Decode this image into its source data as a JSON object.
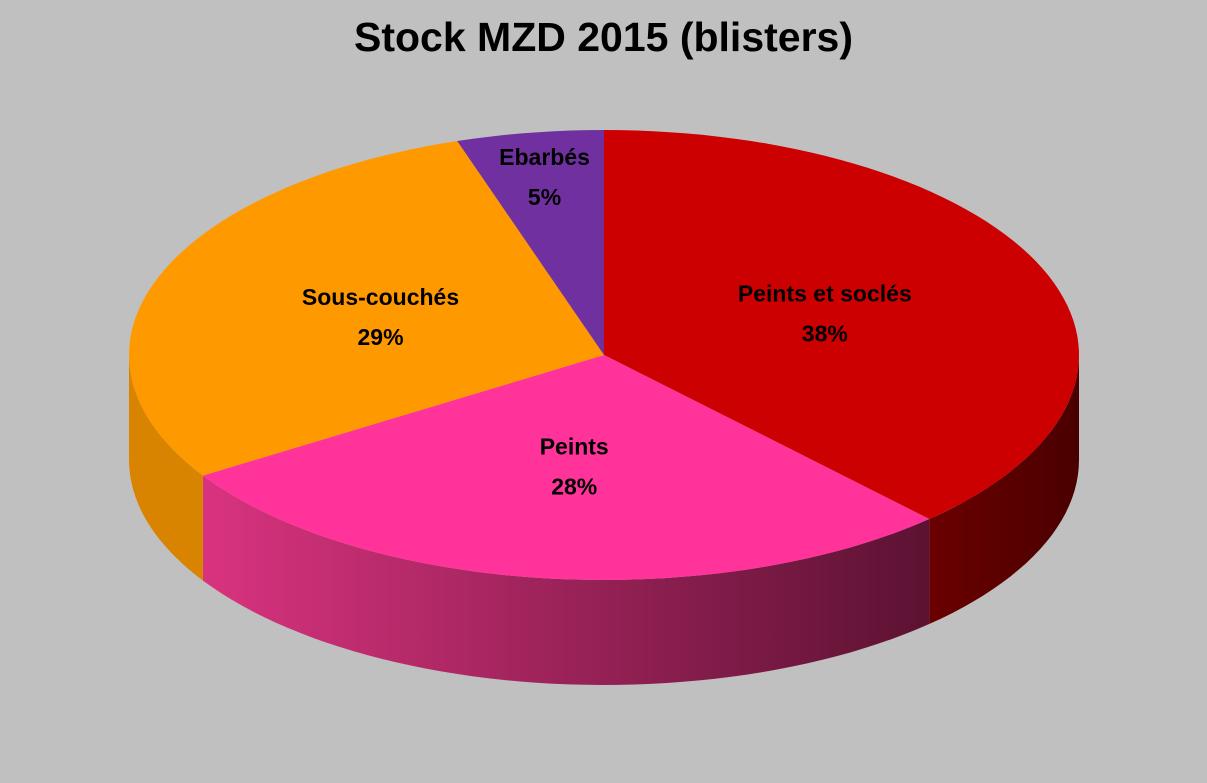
{
  "chart_data": {
    "type": "pie",
    "style": "3d",
    "title": "Stock MZD 2015 (blisters)",
    "slices": [
      {
        "label": "Peints et soclés",
        "value": 38,
        "display": "38%",
        "color": "#cc0000",
        "side_color": "#5a0000"
      },
      {
        "label": "Peints",
        "value": 28,
        "display": "28%",
        "color": "#ff3399",
        "side_color": "#a01e5c"
      },
      {
        "label": "Sous-couchés",
        "value": 29,
        "display": "29%",
        "color": "#ff9900",
        "side_color": "#d98400"
      },
      {
        "label": "Ebarbés",
        "value": 5,
        "display": "5%",
        "color": "#7030a0",
        "side_color": "#4a1f6b"
      }
    ],
    "background": "#c0c0c0",
    "legend": "none"
  }
}
